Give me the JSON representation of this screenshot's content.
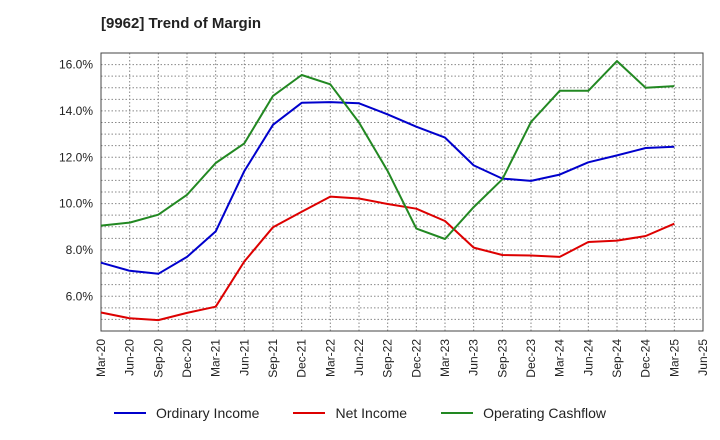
{
  "chart_data": {
    "type": "line",
    "title": "[9962]  Trend of Margin",
    "x": [
      "Mar-20",
      "Jun-20",
      "Sep-20",
      "Dec-20",
      "Mar-21",
      "Jun-21",
      "Sep-21",
      "Dec-21",
      "Mar-22",
      "Jun-22",
      "Sep-22",
      "Dec-22",
      "Mar-23",
      "Jun-23",
      "Sep-23",
      "Dec-23",
      "Mar-24",
      "Jun-24",
      "Sep-24",
      "Dec-24",
      "Mar-25",
      "Jun-25"
    ],
    "ylim": [
      4.5,
      16.5
    ],
    "yticks": [
      6.0,
      8.0,
      10.0,
      12.0,
      14.0,
      16.0
    ],
    "ytick_labels": [
      "6.0%",
      "8.0%",
      "10.0%",
      "12.0%",
      "14.0%",
      "16.0%"
    ],
    "grid": true,
    "legend_position": "bottom",
    "series": [
      {
        "name": "Ordinary Income",
        "color": "#0000cc",
        "values": [
          7.45,
          7.1,
          6.97,
          7.7,
          8.8,
          11.4,
          13.4,
          14.35,
          14.38,
          14.33,
          13.85,
          13.32,
          12.85,
          11.65,
          11.08,
          10.98,
          11.25,
          11.78,
          12.08,
          12.4,
          12.45,
          null
        ]
      },
      {
        "name": "Net Income",
        "color": "#dd0000",
        "values": [
          5.3,
          5.05,
          4.97,
          5.28,
          5.55,
          7.5,
          8.98,
          9.65,
          10.3,
          10.22,
          9.98,
          9.78,
          9.25,
          8.1,
          7.78,
          7.76,
          7.7,
          8.34,
          8.4,
          8.6,
          9.13,
          null
        ]
      },
      {
        "name": "Operating Cashflow",
        "color": "#228822",
        "values": [
          9.05,
          9.18,
          9.52,
          10.38,
          11.75,
          12.6,
          14.65,
          15.55,
          15.15,
          13.5,
          11.4,
          8.92,
          8.47,
          9.85,
          11.05,
          13.52,
          14.87,
          14.87,
          16.15,
          15.0,
          15.07,
          null
        ]
      }
    ]
  }
}
